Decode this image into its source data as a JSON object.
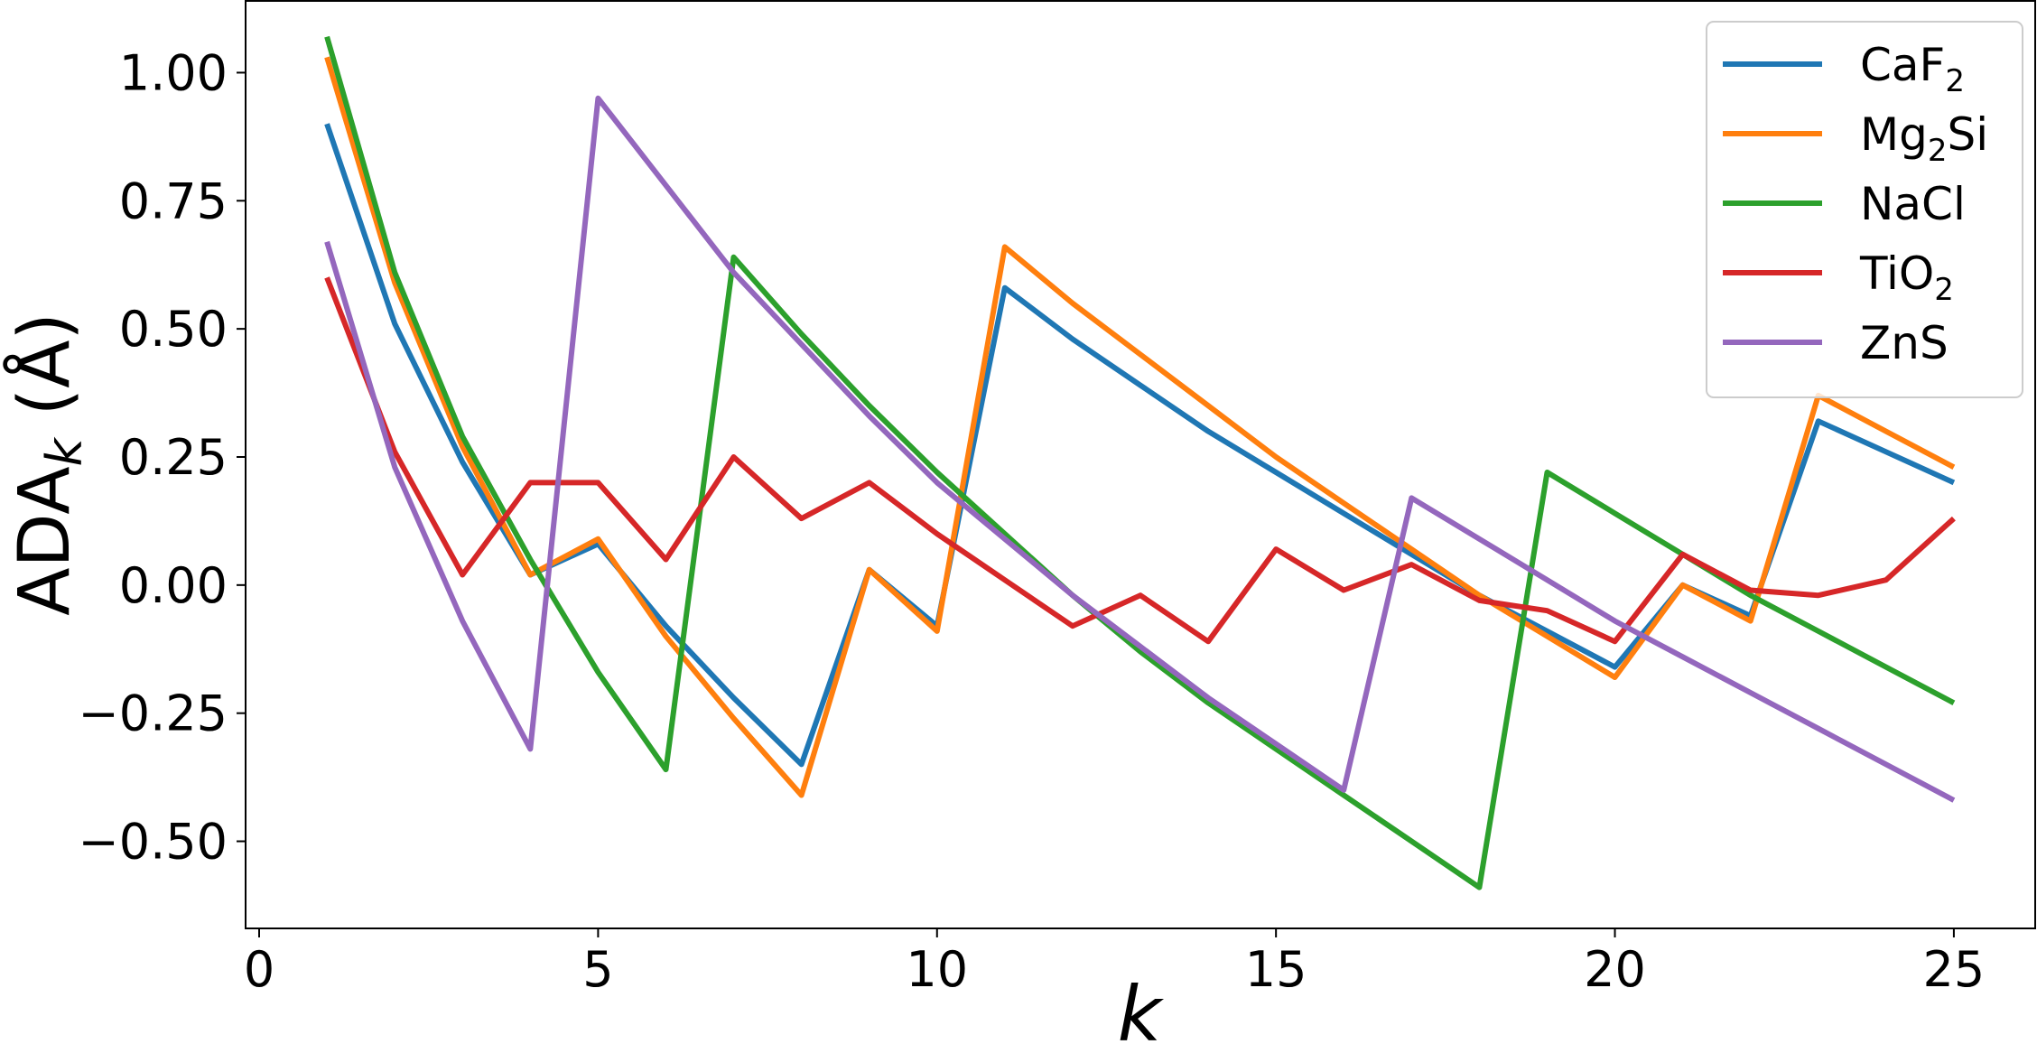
{
  "chart_data": {
    "type": "line",
    "xlabel": "k",
    "ylabel_main": "ADA",
    "ylabel_sub": "k",
    "ylabel_unit": " (Å)",
    "xlim": [
      -0.2,
      26.2
    ],
    "ylim": [
      -0.67,
      1.14
    ],
    "xticks": [
      0,
      5,
      10,
      15,
      20,
      25
    ],
    "yticks": [
      -0.5,
      -0.25,
      0.0,
      0.25,
      0.5,
      0.75,
      1.0
    ],
    "ytick_labels": [
      "−0.50",
      "−0.25",
      "0.00",
      "0.25",
      "0.50",
      "0.75",
      "1.00"
    ],
    "grid": false,
    "legend_position": "top-right",
    "x": [
      1,
      2,
      3,
      4,
      5,
      6,
      7,
      8,
      9,
      10,
      11,
      12,
      13,
      14,
      15,
      16,
      17,
      18,
      19,
      20,
      21,
      22,
      23,
      24,
      25
    ],
    "series": [
      {
        "name": "CaF2",
        "name_parts": [
          "CaF",
          "2",
          ""
        ],
        "color": "#1f77b4",
        "values": [
          0.9,
          0.51,
          0.24,
          0.02,
          0.08,
          -0.08,
          -0.22,
          -0.35,
          0.03,
          -0.08,
          0.58,
          0.48,
          0.39,
          0.3,
          0.22,
          0.14,
          0.06,
          -0.02,
          -0.09,
          -0.16,
          0.0,
          -0.06,
          0.32,
          0.26,
          0.2
        ]
      },
      {
        "name": "Mg2Si",
        "name_parts": [
          "Mg",
          "2",
          "Si"
        ],
        "color": "#ff7f0e",
        "values": [
          1.03,
          0.59,
          0.27,
          0.02,
          0.09,
          -0.1,
          -0.26,
          -0.41,
          0.03,
          -0.09,
          0.66,
          0.55,
          0.45,
          0.35,
          0.25,
          0.16,
          0.07,
          -0.02,
          -0.1,
          -0.18,
          0.0,
          -0.07,
          0.37,
          0.3,
          0.23
        ]
      },
      {
        "name": "NaCl",
        "name_parts": [
          "NaCl",
          "",
          ""
        ],
        "color": "#2ca02c",
        "values": [
          1.07,
          0.61,
          0.29,
          0.05,
          -0.17,
          -0.36,
          0.64,
          0.49,
          0.35,
          0.22,
          0.1,
          -0.02,
          -0.13,
          -0.23,
          -0.32,
          -0.41,
          -0.5,
          -0.59,
          0.22,
          0.14,
          0.06,
          -0.02,
          -0.09,
          -0.16,
          -0.23
        ]
      },
      {
        "name": "TiO2",
        "name_parts": [
          "TiO",
          "2",
          ""
        ],
        "color": "#d62728",
        "values": [
          0.6,
          0.26,
          0.02,
          0.2,
          0.2,
          0.05,
          0.25,
          0.13,
          0.2,
          0.1,
          0.01,
          -0.08,
          -0.02,
          -0.11,
          0.07,
          -0.01,
          0.04,
          -0.03,
          -0.05,
          -0.11,
          0.06,
          -0.01,
          -0.02,
          0.01,
          0.13
        ]
      },
      {
        "name": "ZnS",
        "name_parts": [
          "ZnS",
          "",
          ""
        ],
        "color": "#9467bd",
        "values": [
          0.67,
          0.23,
          -0.07,
          -0.32,
          0.95,
          0.78,
          0.61,
          0.47,
          0.33,
          0.2,
          0.09,
          -0.02,
          -0.12,
          -0.22,
          -0.31,
          -0.4,
          0.17,
          0.09,
          0.01,
          -0.07,
          -0.14,
          -0.21,
          -0.28,
          -0.35,
          -0.42
        ]
      }
    ]
  }
}
